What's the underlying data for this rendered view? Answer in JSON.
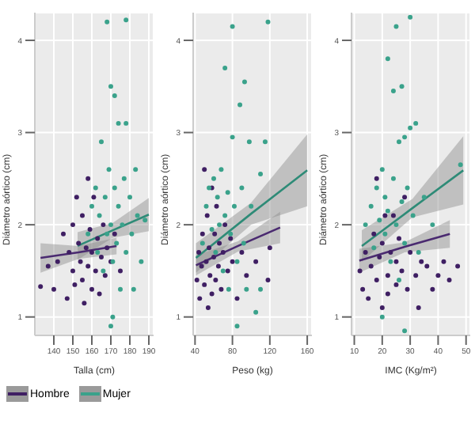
{
  "chart_data": [
    {
      "type": "scatter",
      "xlabel": "Talla (cm)",
      "ylabel": "Diámetro aórtico (cm)",
      "xlim": [
        130,
        192.5
      ],
      "xticks": [
        140,
        150,
        160,
        170,
        180,
        190
      ],
      "ylim": [
        0.8,
        4.3
      ],
      "yticks": [
        1,
        2,
        3,
        4
      ],
      "grid": true,
      "legend": "bottom",
      "series": [
        {
          "name": "Hombre",
          "color": "#3f1f63",
          "marker": "circle",
          "x": [
            133,
            137,
            140,
            142,
            145,
            147,
            148,
            150,
            150,
            151,
            152,
            153,
            154,
            155,
            155,
            156,
            157,
            158,
            158,
            159,
            160,
            160,
            161,
            162,
            163,
            164,
            165,
            166,
            167,
            168,
            170,
            172,
            175
          ],
          "values": [
            1.33,
            1.55,
            1.3,
            1.6,
            1.9,
            1.2,
            1.7,
            2.0,
            1.5,
            1.35,
            2.3,
            1.8,
            1.6,
            2.1,
            1.4,
            1.15,
            1.75,
            2.5,
            1.55,
            1.95,
            1.3,
            1.7,
            2.3,
            1.5,
            1.85,
            1.25,
            1.65,
            2.0,
            1.45,
            1.75,
            1.6,
            1.9,
            1.5
          ]
        },
        {
          "name": "Mujer",
          "color": "#3aa28b",
          "marker": "circle",
          "x": [
            158,
            160,
            162,
            163,
            164,
            165,
            166,
            167,
            168,
            168,
            169,
            170,
            170,
            171,
            171,
            172,
            172,
            173,
            174,
            175,
            176,
            177,
            178,
            178,
            178,
            180,
            181,
            182,
            183,
            184,
            186,
            188,
            174,
            170
          ],
          "values": [
            1.9,
            2.2,
            2.4,
            1.7,
            2.1,
            2.9,
            1.5,
            2.3,
            4.2,
            1.9,
            2.6,
            3.5,
            2.0,
            1.0,
            1.6,
            3.4,
            2.4,
            1.8,
            2.2,
            1.3,
            2.0,
            2.5,
            4.22,
            3.1,
            1.7,
            2.3,
            1.9,
            1.3,
            2.6,
            2.1,
            1.6,
            2.05,
            3.1,
            0.9
          ]
        },
        {
          "type": "line",
          "color": "#4a2a70",
          "marker": "none",
          "x": [
            133,
            153,
            173
          ],
          "values": [
            1.64,
            1.7,
            1.77
          ],
          "lower": [
            1.48,
            1.63,
            1.68
          ],
          "upper": [
            1.8,
            1.77,
            1.86
          ]
        },
        {
          "type": "line",
          "color": "#2e8b77",
          "marker": "none",
          "x": [
            152.5,
            171,
            190
          ],
          "values": [
            1.77,
            1.94,
            2.11
          ],
          "lower": [
            1.62,
            1.86,
            1.93
          ],
          "upper": [
            1.92,
            2.02,
            2.29
          ]
        }
      ]
    },
    {
      "type": "scatter",
      "xlabel": "Peso (kg)",
      "ylabel": "Diámetro aórtico (cm)",
      "xlim": [
        38,
        165
      ],
      "xticks": [
        40,
        80,
        120,
        160
      ],
      "ylim": [
        0.8,
        4.3
      ],
      "yticks": [
        1,
        2,
        3,
        4
      ],
      "grid": true,
      "series": [
        {
          "color": "#3f1f63",
          "marker": "circle",
          "x": [
            42,
            44,
            45,
            47,
            48,
            50,
            52,
            53,
            54,
            55,
            56,
            58,
            58,
            60,
            61,
            62,
            63,
            65,
            66,
            68,
            70,
            72,
            75,
            78,
            80,
            85,
            90,
            95,
            105,
            120,
            118,
            50
          ],
          "values": [
            1.4,
            1.7,
            1.2,
            1.55,
            1.9,
            1.35,
            1.6,
            2.1,
            1.1,
            1.75,
            1.45,
            2.4,
            1.25,
            1.65,
            1.9,
            1.4,
            2.2,
            1.55,
            1.8,
            1.3,
            1.7,
            2.0,
            1.5,
            1.85,
            1.6,
            1.2,
            1.7,
            1.45,
            1.6,
            1.75,
            1.4,
            2.6
          ]
        },
        {
          "color": "#3aa28b",
          "marker": "circle",
          "x": [
            48,
            52,
            55,
            58,
            60,
            62,
            64,
            66,
            68,
            70,
            72,
            72,
            75,
            76,
            78,
            80,
            80,
            82,
            85,
            88,
            90,
            92,
            93,
            95,
            98,
            100,
            105,
            110,
            115,
            118,
            110,
            85
          ],
          "values": [
            1.8,
            2.2,
            2.4,
            1.95,
            2.5,
            1.7,
            2.3,
            2.0,
            2.6,
            1.5,
            3.7,
            2.1,
            2.35,
            1.3,
            1.9,
            4.15,
            2.95,
            2.2,
            1.6,
            3.3,
            2.4,
            1.8,
            3.55,
            1.3,
            2.9,
            2.2,
            1.05,
            1.3,
            2.9,
            4.2,
            2.55,
            0.9
          ]
        },
        {
          "type": "line",
          "color": "#4a2a70",
          "marker": "none",
          "x": [
            41,
            86,
            131
          ],
          "values": [
            1.56,
            1.77,
            1.97
          ],
          "lower": [
            1.45,
            1.71,
            1.8
          ],
          "upper": [
            1.67,
            1.82,
            2.14
          ]
        },
        {
          "type": "line",
          "color": "#2e8b77",
          "marker": "none",
          "x": [
            41,
            100,
            160
          ],
          "values": [
            1.64,
            2.12,
            2.59
          ],
          "lower": [
            1.48,
            2.0,
            2.2
          ],
          "upper": [
            1.8,
            2.24,
            2.98
          ]
        }
      ]
    },
    {
      "type": "scatter",
      "xlabel": "IMC (Kg/m²)",
      "ylabel": "Diámetro aórtico (cm)",
      "xlim": [
        9,
        51.5
      ],
      "xticks": [
        10,
        20,
        30,
        40,
        50
      ],
      "ylim": [
        0.8,
        4.3
      ],
      "yticks": [
        1,
        2,
        3,
        4
      ],
      "grid": true,
      "series": [
        {
          "color": "#3f1f63",
          "marker": "circle",
          "x": [
            12,
            13,
            14,
            15,
            16,
            17,
            18,
            18,
            19,
            20,
            20,
            21,
            22,
            22,
            23,
            24,
            25,
            25,
            26,
            27,
            28,
            29,
            30,
            32,
            34,
            36,
            38,
            40,
            42,
            44,
            47,
            33
          ],
          "values": [
            1.5,
            1.3,
            1.7,
            1.2,
            1.55,
            1.9,
            1.4,
            2.5,
            1.65,
            1.1,
            1.8,
            2.1,
            1.45,
            1.25,
            1.7,
            2.1,
            1.35,
            1.6,
            1.85,
            1.5,
            2.3,
            1.3,
            1.7,
            1.45,
            1.6,
            1.55,
            1.3,
            1.45,
            1.6,
            1.4,
            1.55,
            1.1
          ]
        },
        {
          "color": "#3aa28b",
          "marker": "circle",
          "x": [
            14,
            16,
            17,
            18,
            19,
            20,
            21,
            21,
            22,
            22,
            23,
            24,
            24,
            25,
            25,
            26,
            26,
            27,
            27,
            28,
            28,
            29,
            30,
            30,
            31,
            32,
            33,
            35,
            38,
            48,
            20,
            28
          ],
          "values": [
            2.0,
            2.2,
            1.75,
            2.4,
            2.05,
            2.6,
            1.9,
            2.3,
            3.8,
            2.15,
            1.6,
            3.45,
            2.5,
            4.15,
            2.0,
            2.9,
            1.4,
            3.5,
            2.25,
            2.95,
            1.8,
            2.4,
            4.25,
            3.05,
            2.1,
            3.1,
            1.7,
            2.3,
            2.0,
            2.65,
            1.0,
            0.85
          ]
        },
        {
          "type": "line",
          "color": "#4a2a70",
          "marker": "none",
          "x": [
            11.8,
            28,
            44.2
          ],
          "values": [
            1.61,
            1.76,
            1.9
          ],
          "lower": [
            1.48,
            1.7,
            1.75
          ],
          "upper": [
            1.74,
            1.81,
            2.05
          ]
        },
        {
          "type": "line",
          "color": "#2e8b77",
          "marker": "none",
          "x": [
            12.7,
            30.8,
            49
          ],
          "values": [
            1.77,
            2.18,
            2.59
          ],
          "lower": [
            1.6,
            2.08,
            2.22
          ],
          "upper": [
            1.94,
            2.28,
            2.96
          ]
        }
      ]
    }
  ]
}
